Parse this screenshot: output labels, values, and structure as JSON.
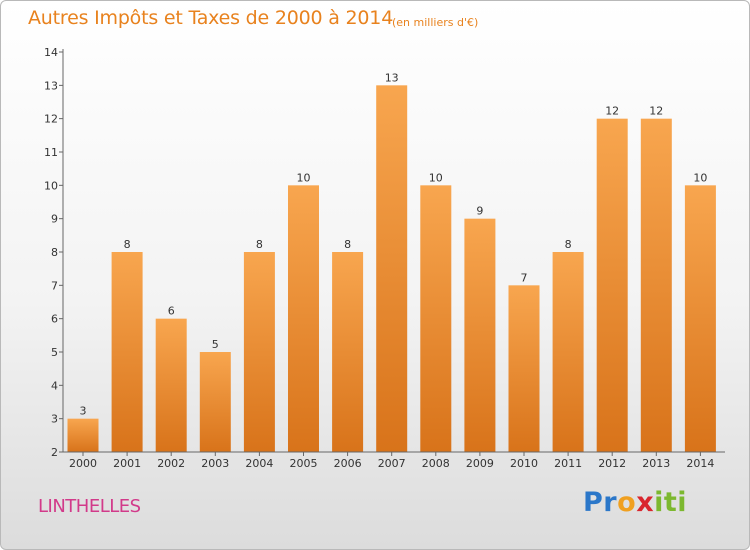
{
  "title": "Autres Impôts et Taxes de 2000 à 2014",
  "subtitle": "(en milliers d'€)",
  "commune": "LINTHELLES",
  "logo": {
    "letters": [
      "P",
      "r",
      "o",
      "x",
      "i",
      "t",
      "i"
    ],
    "colors": [
      "#2b77c9",
      "#2b77c9",
      "#f0a020",
      "#d9262e",
      "#7cb82f",
      "#7cb82f",
      "#7cb82f"
    ]
  },
  "colors": {
    "bar_light": "#f8a64f",
    "bar_dark": "#d8731a",
    "title": "#e8821e",
    "commune": "#d23a8a"
  },
  "chart_data": {
    "type": "bar",
    "categories": [
      "2000",
      "2001",
      "2002",
      "2003",
      "2004",
      "2005",
      "2006",
      "2007",
      "2008",
      "2009",
      "2010",
      "2011",
      "2012",
      "2013",
      "2014"
    ],
    "values": [
      3,
      8,
      6,
      5,
      8,
      10,
      8,
      13,
      10,
      9,
      7,
      8,
      12,
      12,
      10
    ],
    "title": "Autres Impôts et Taxes de 2000 à 2014",
    "subtitle": "(en milliers d'€)",
    "xlabel": "",
    "ylabel": "",
    "ylim": [
      2,
      14
    ],
    "yticks": [
      2,
      3,
      4,
      5,
      6,
      7,
      8,
      9,
      10,
      11,
      12,
      13,
      14
    ],
    "grid": false,
    "data_labels": true
  }
}
